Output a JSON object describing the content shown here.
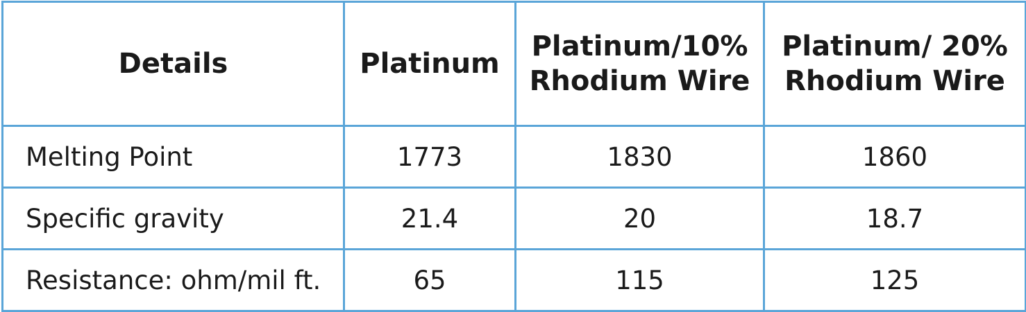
{
  "table": {
    "headers": [
      {
        "lines": [
          "Details"
        ]
      },
      {
        "lines": [
          "Platinum"
        ]
      },
      {
        "lines": [
          "Platinum/10%",
          "Rhodium Wire"
        ]
      },
      {
        "lines": [
          "Platinum/ 20%",
          "Rhodium Wire"
        ]
      }
    ],
    "rows": [
      {
        "label": "Melting Point",
        "values": [
          "1773",
          "1830",
          "1860"
        ]
      },
      {
        "label": "Specific gravity",
        "values": [
          "21.4",
          "20",
          "18.7"
        ]
      },
      {
        "label": "Resistance: ohm/mil ft.",
        "values": [
          "65",
          "115",
          "125"
        ]
      }
    ]
  },
  "colors": {
    "border": "#5aa5d8",
    "text": "#1a1a1a",
    "background": "#ffffff"
  }
}
